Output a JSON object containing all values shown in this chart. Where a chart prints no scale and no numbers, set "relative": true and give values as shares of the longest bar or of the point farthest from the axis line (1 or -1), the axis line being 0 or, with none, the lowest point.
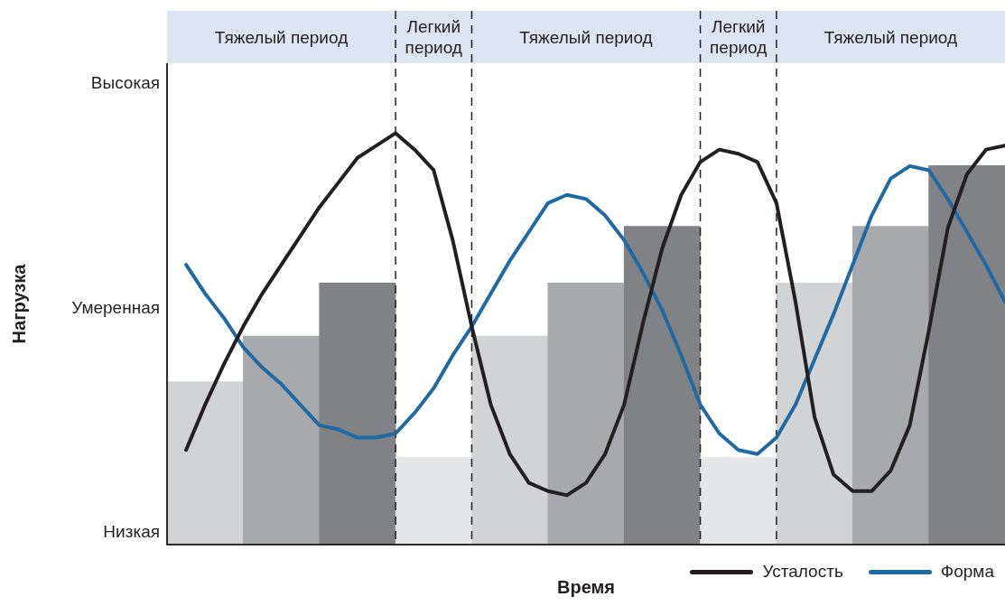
{
  "chart_data": [
    {
      "type": "other",
      "annotations": [
        "Тяжелый период",
        "Легкий период",
        "Тяжелый период",
        "Легкий период",
        "Тяжелый период"
      ]
    },
    {
      "type": "bar",
      "xlabel": "Время",
      "ylabel": "Нагрузка",
      "relative": true,
      "annotations": [
        "Высокая",
        "Умеренная",
        "Низкая"
      ],
      "categories": [
        null,
        null,
        null,
        null,
        null,
        null,
        null,
        null,
        null,
        null,
        null
      ],
      "values": [
        0.43,
        0.55,
        0.69,
        0.23,
        0.55,
        0.69,
        0.84,
        0.23,
        0.69,
        0.84,
        1
      ],
      "colors": [
        "#d1d3d4",
        "#a7a9ac",
        "#808285",
        "#e6e7e8",
        "#d1d3d4",
        "#a7a9ac",
        "#808285",
        "#e6e7e8",
        "#d1d3d4",
        "#a7a9ac",
        "#808285"
      ],
      "grid": false
    },
    {
      "type": "line",
      "relative": true,
      "categories": [
        null,
        null,
        null,
        null,
        null,
        null,
        null,
        null,
        null,
        null,
        null,
        null,
        null,
        null,
        null,
        null,
        null,
        null,
        null,
        null,
        null,
        null,
        null,
        null,
        null,
        null,
        null,
        null,
        null,
        null,
        null,
        null,
        null,
        null,
        null,
        null,
        null,
        null,
        null,
        null,
        null,
        null,
        null,
        null,
        null
      ],
      "grid": false,
      "legend": "bottom right",
      "marker": "none",
      "line_style": "solid",
      "series": [
        {
          "name": "Усталость",
          "color": "#231f20",
          "values": [
            null,
            0.23,
            0.34,
            0.44,
            0.53,
            0.61,
            0.68,
            0.75,
            0.82,
            0.88,
            0.94,
            0.97,
            1,
            0.96,
            0.91,
            0.74,
            0.53,
            0.34,
            0.22,
            0.15,
            0.13,
            0.12,
            0.15,
            0.22,
            0.34,
            0.54,
            0.72,
            0.85,
            0.93,
            0.96,
            0.95,
            0.93,
            0.83,
            0.59,
            0.31,
            0.17,
            0.13,
            0.13,
            0.18,
            0.29,
            0.52,
            0.77,
            0.9,
            0.96,
            0.97
          ]
        },
        {
          "name": "Форма",
          "color": "#1f6aa5",
          "values": [
            null,
            0.68,
            0.61,
            0.55,
            0.48,
            0.43,
            0.39,
            0.34,
            0.29,
            0.28,
            0.26,
            0.26,
            0.27,
            0.32,
            0.38,
            0.46,
            0.53,
            0.61,
            0.69,
            0.76,
            0.83,
            0.85,
            0.84,
            0.8,
            0.74,
            0.66,
            0.57,
            0.46,
            0.34,
            0.27,
            0.23,
            0.22,
            0.26,
            0.34,
            0.45,
            0.56,
            0.68,
            0.8,
            0.89,
            0.92,
            0.91,
            0.84,
            0.76,
            0.68,
            0.59
          ]
        }
      ]
    }
  ]
}
